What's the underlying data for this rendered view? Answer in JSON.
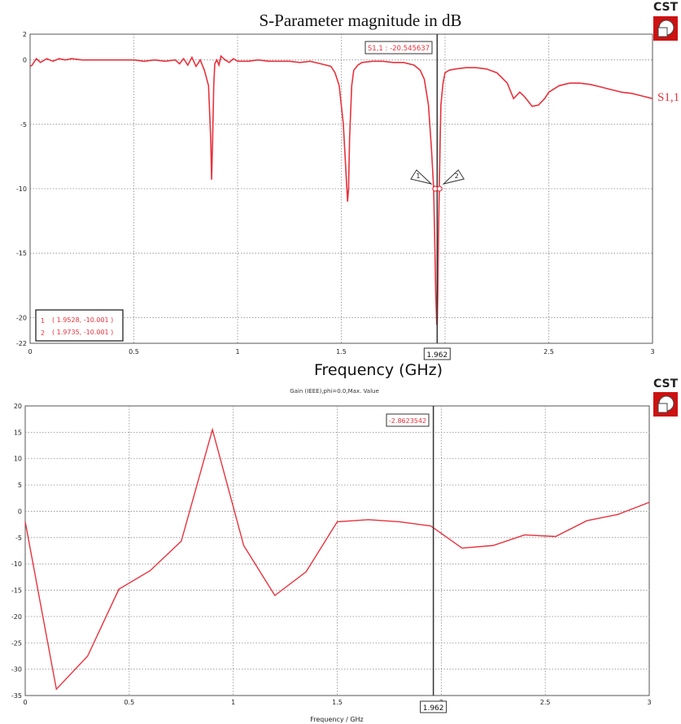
{
  "colors": {
    "trace": "#e8323c",
    "grid": "#8a8a8a",
    "marker_line": "#333333",
    "logo_red": "#cc1111"
  },
  "logo": {
    "text": "CST",
    "icon": "cst-cube-icon"
  },
  "chart_data": [
    {
      "type": "line",
      "title": "S-Parameter magnitude in dB",
      "xlabel": "Frequency (GHz)",
      "ylabel": "",
      "xlim": [
        0,
        3
      ],
      "ylim": [
        -22,
        2
      ],
      "xticks": [
        "0",
        "0.5",
        "1",
        "1.5",
        "2",
        "2.5",
        "3"
      ],
      "yticks": [
        "2",
        "0",
        "-5",
        "-10",
        "-15",
        "-20",
        "-22"
      ],
      "grid": true,
      "series": [
        {
          "name": "S1,1",
          "x": [
            0,
            0.01,
            0.03,
            0.05,
            0.08,
            0.11,
            0.14,
            0.17,
            0.2,
            0.25,
            0.3,
            0.35,
            0.4,
            0.45,
            0.5,
            0.55,
            0.6,
            0.65,
            0.7,
            0.72,
            0.74,
            0.76,
            0.78,
            0.8,
            0.82,
            0.84,
            0.86,
            0.87,
            0.875,
            0.88,
            0.885,
            0.89,
            0.9,
            0.91,
            0.92,
            0.94,
            0.96,
            0.98,
            1.0,
            1.05,
            1.1,
            1.15,
            1.2,
            1.25,
            1.3,
            1.35,
            1.4,
            1.45,
            1.47,
            1.49,
            1.51,
            1.52,
            1.53,
            1.535,
            1.54,
            1.55,
            1.56,
            1.58,
            1.6,
            1.65,
            1.7,
            1.75,
            1.8,
            1.85,
            1.88,
            1.9,
            1.92,
            1.935,
            1.945,
            1.95,
            1.955,
            1.96,
            1.962,
            1.965,
            1.968,
            1.972,
            1.976,
            1.98,
            1.99,
            2.0,
            2.02,
            2.05,
            2.1,
            2.15,
            2.2,
            2.25,
            2.3,
            2.33,
            2.36,
            2.38,
            2.4,
            2.42,
            2.45,
            2.48,
            2.5,
            2.55,
            2.6,
            2.65,
            2.7,
            2.75,
            2.8,
            2.85,
            2.9,
            2.95,
            3.0
          ],
          "y": [
            -0.5,
            -0.4,
            0.1,
            -0.2,
            0.1,
            -0.1,
            0.1,
            0.0,
            0.1,
            0.0,
            0.0,
            0.0,
            0.0,
            0.0,
            0.0,
            -0.1,
            0.0,
            -0.1,
            0.0,
            -0.3,
            0.1,
            -0.4,
            0.2,
            -0.5,
            0.0,
            -0.8,
            -2.0,
            -6.0,
            -9.3,
            -6.0,
            -2.0,
            -0.3,
            0.0,
            -0.4,
            0.3,
            0.0,
            -0.2,
            0.1,
            -0.1,
            -0.1,
            0.0,
            -0.1,
            -0.1,
            -0.1,
            -0.2,
            -0.1,
            -0.3,
            -0.5,
            -1.0,
            -2.0,
            -5.0,
            -8.0,
            -11.0,
            -10.0,
            -6.0,
            -2.0,
            -0.8,
            -0.4,
            -0.2,
            -0.1,
            -0.1,
            -0.2,
            -0.2,
            -0.4,
            -0.8,
            -1.5,
            -3.5,
            -7.0,
            -10.0,
            -14.0,
            -18.0,
            -20.5,
            -20.6,
            -18.0,
            -14.0,
            -10.0,
            -6.5,
            -3.5,
            -1.8,
            -1.0,
            -0.8,
            -0.7,
            -0.6,
            -0.6,
            -0.7,
            -1.0,
            -1.8,
            -3.0,
            -2.5,
            -2.8,
            -3.2,
            -3.6,
            -3.5,
            -3.0,
            -2.5,
            -2.0,
            -1.8,
            -1.8,
            -1.9,
            -2.1,
            -2.3,
            -2.5,
            -2.6,
            -2.8,
            -3.0
          ]
        }
      ],
      "series_label": "S1,1",
      "marker_readout": "S1,1 : -20.545637",
      "marker_x_label": "1.962",
      "marker_x": 1.962,
      "point_markers": [
        {
          "label": "1",
          "x": 1.9528,
          "y": -10.001
        },
        {
          "label": "2",
          "x": 1.9735,
          "y": -10.001
        }
      ],
      "legend_entries": [
        {
          "id": "1",
          "text": "( 1.9528, -10.001 )"
        },
        {
          "id": "2",
          "text": "( 1.9735, -10.001 )"
        }
      ]
    },
    {
      "type": "line",
      "title": "Gain (IEEE),phi=0.0,Max. Value",
      "xlabel": "Frequency / GHz",
      "ylabel": "",
      "xlim": [
        0,
        3
      ],
      "ylim": [
        -35,
        20
      ],
      "xticks": [
        "0",
        "0.5",
        "1",
        "1.5",
        "2",
        "2.5",
        "3"
      ],
      "yticks": [
        "20",
        "15",
        "10",
        "5",
        "0",
        "-5",
        "-10",
        "-15",
        "-20",
        "-25",
        "-30",
        "-35"
      ],
      "grid": true,
      "series": [
        {
          "x": [
            0,
            0.15,
            0.3,
            0.45,
            0.6,
            0.75,
            0.9,
            1.05,
            1.2,
            1.35,
            1.5,
            1.65,
            1.8,
            1.95,
            2.1,
            2.25,
            2.4,
            2.55,
            2.7,
            2.85,
            3.0
          ],
          "y": [
            -2.0,
            -33.8,
            -27.5,
            -14.8,
            -11.3,
            -5.7,
            15.5,
            -6.5,
            -16.0,
            -11.5,
            -2.0,
            -1.6,
            -2.0,
            -2.8,
            -7.0,
            -6.5,
            -4.5,
            -4.8,
            -1.8,
            -0.6,
            1.7
          ]
        }
      ],
      "marker_readout": "-2.8623542",
      "marker_x_label": "1.962",
      "marker_x": 1.962
    }
  ]
}
